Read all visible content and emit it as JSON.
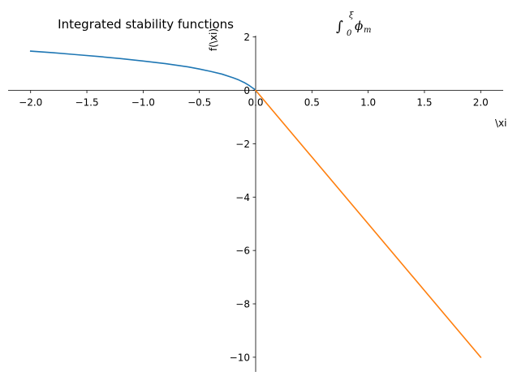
{
  "chart_data": {
    "type": "line",
    "title": "Integrated stability functions",
    "title_math": {
      "integral": "∫",
      "upper_limit": "ξ",
      "lower_limit": "0",
      "integrand": "ϕ",
      "subscript": "m"
    },
    "xlabel": "\\xi",
    "ylabel": "f(\\xi)",
    "xlim": [
      -2.2,
      2.2
    ],
    "ylim": [
      -10.55,
      2.05
    ],
    "x_ticks": [
      -2.0,
      -1.5,
      -1.0,
      -0.5,
      0.0,
      0.5,
      1.0,
      1.5,
      2.0
    ],
    "x_tick_labels": [
      "−2.0",
      "−1.5",
      "−1.0",
      "−0.5",
      "0.0",
      "0.5",
      "1.0",
      "1.5",
      "2.0"
    ],
    "y_ticks": [
      2,
      0,
      -2,
      -4,
      -6,
      -8,
      -10
    ],
    "y_tick_labels": [
      "2",
      "0",
      "−2",
      "−4",
      "−6",
      "−8",
      "−10"
    ],
    "grid": false,
    "spines": "centered",
    "series": [
      {
        "color": "#1f77b4",
        "x": [
          -2.0,
          -1.8,
          -1.6,
          -1.4,
          -1.2,
          -1.0,
          -0.8,
          -0.6,
          -0.5,
          -0.4,
          -0.3,
          -0.2,
          -0.15,
          -0.1,
          -0.06,
          -0.03,
          -0.01,
          0.0
        ],
        "y": [
          1.47,
          1.41,
          1.34,
          1.27,
          1.19,
          1.1,
          1.0,
          0.88,
          0.8,
          0.71,
          0.61,
          0.47,
          0.39,
          0.29,
          0.19,
          0.1,
          0.04,
          0.0
        ]
      },
      {
        "color": "#ff7f0e",
        "x": [
          0.0,
          2.0
        ],
        "y": [
          0.0,
          -10.0
        ]
      }
    ]
  }
}
